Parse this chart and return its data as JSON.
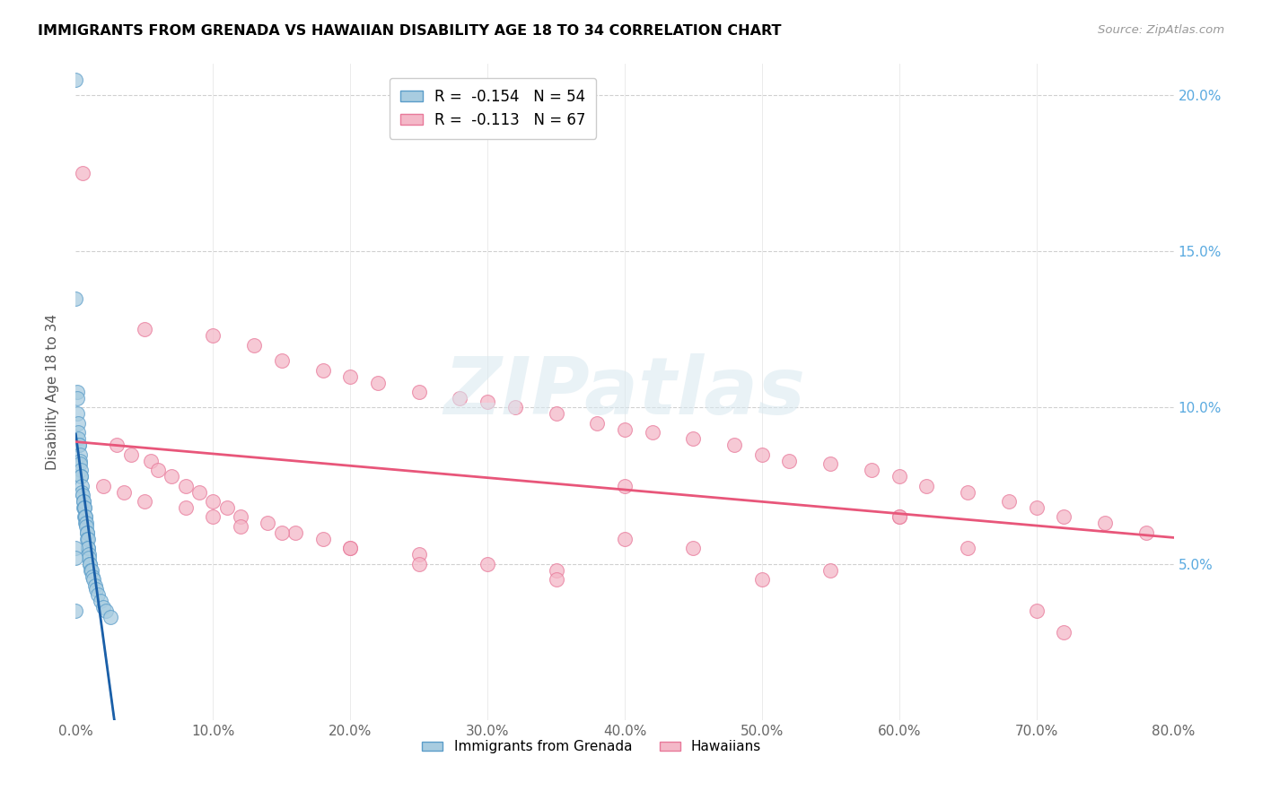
{
  "title": "IMMIGRANTS FROM GRENADA VS HAWAIIAN DISABILITY AGE 18 TO 34 CORRELATION CHART",
  "source": "Source: ZipAtlas.com",
  "xlabel": "",
  "ylabel": "Disability Age 18 to 34",
  "legend_label_1": "Immigrants from Grenada",
  "legend_label_2": "Hawaiians",
  "R1": -0.154,
  "N1": 54,
  "R2": -0.113,
  "N2": 67,
  "color_blue": "#a8cce0",
  "color_pink": "#f4b8c8",
  "color_blue_edge": "#5b9dc9",
  "color_pink_edge": "#e8799a",
  "color_blue_line": "#1a5fa8",
  "color_pink_line": "#e8567a",
  "color_dashed": "#aec6d8",
  "watermark": "ZIPatlas",
  "xlim": [
    0,
    80
  ],
  "ylim": [
    0,
    21
  ],
  "x_ticks": [
    0,
    10,
    20,
    30,
    40,
    50,
    60,
    70,
    80
  ],
  "y_ticks_right": [
    5,
    10,
    15,
    20
  ],
  "blue_dots_x": [
    0.0,
    0.0,
    0.0,
    0.08,
    0.1,
    0.12,
    0.15,
    0.18,
    0.2,
    0.22,
    0.25,
    0.28,
    0.3,
    0.32,
    0.35,
    0.38,
    0.4,
    0.42,
    0.45,
    0.5,
    0.55,
    0.55,
    0.58,
    0.6,
    0.62,
    0.65,
    0.68,
    0.7,
    0.72,
    0.75,
    0.78,
    0.8,
    0.82,
    0.85,
    0.88,
    0.9,
    0.92,
    0.95,
    0.98,
    1.0,
    1.05,
    1.1,
    1.15,
    1.2,
    1.3,
    1.4,
    1.5,
    1.6,
    1.8,
    2.0,
    2.2,
    2.5,
    0.0,
    0.0
  ],
  "blue_dots_y": [
    20.5,
    13.5,
    3.5,
    10.5,
    10.3,
    9.8,
    9.5,
    9.2,
    9.0,
    8.8,
    8.8,
    8.5,
    8.3,
    8.2,
    8.0,
    7.8,
    7.8,
    7.5,
    7.3,
    7.2,
    7.0,
    6.8,
    7.0,
    6.8,
    6.5,
    6.8,
    6.5,
    6.3,
    6.5,
    6.3,
    6.2,
    6.0,
    6.0,
    5.8,
    5.8,
    5.5,
    5.5,
    5.3,
    5.2,
    5.0,
    5.0,
    4.8,
    4.8,
    4.6,
    4.5,
    4.3,
    4.2,
    4.0,
    3.8,
    3.6,
    3.5,
    3.3,
    5.5,
    5.2
  ],
  "pink_dots_x": [
    0.5,
    5.0,
    10.0,
    13.0,
    15.0,
    18.0,
    20.0,
    22.0,
    25.0,
    28.0,
    30.0,
    32.0,
    35.0,
    38.0,
    40.0,
    42.0,
    45.0,
    48.0,
    50.0,
    52.0,
    55.0,
    58.0,
    60.0,
    62.0,
    65.0,
    68.0,
    70.0,
    72.0,
    75.0,
    78.0,
    3.0,
    4.0,
    5.5,
    6.0,
    7.0,
    8.0,
    9.0,
    10.0,
    11.0,
    12.0,
    14.0,
    16.0,
    18.0,
    20.0,
    25.0,
    30.0,
    35.0,
    40.0,
    45.0,
    55.0,
    60.0,
    65.0,
    70.0,
    2.0,
    3.5,
    5.0,
    8.0,
    10.0,
    12.0,
    15.0,
    20.0,
    25.0,
    35.0,
    40.0,
    50.0,
    60.0,
    72.0
  ],
  "pink_dots_y": [
    17.5,
    12.5,
    12.3,
    12.0,
    11.5,
    11.2,
    11.0,
    10.8,
    10.5,
    10.3,
    10.2,
    10.0,
    9.8,
    9.5,
    9.3,
    9.2,
    9.0,
    8.8,
    8.5,
    8.3,
    8.2,
    8.0,
    7.8,
    7.5,
    7.3,
    7.0,
    6.8,
    6.5,
    6.3,
    6.0,
    8.8,
    8.5,
    8.3,
    8.0,
    7.8,
    7.5,
    7.3,
    7.0,
    6.8,
    6.5,
    6.3,
    6.0,
    5.8,
    5.5,
    5.3,
    5.0,
    4.8,
    5.8,
    5.5,
    4.8,
    6.5,
    5.5,
    3.5,
    7.5,
    7.3,
    7.0,
    6.8,
    6.5,
    6.2,
    6.0,
    5.5,
    5.0,
    4.5,
    7.5,
    4.5,
    6.5,
    2.8
  ]
}
